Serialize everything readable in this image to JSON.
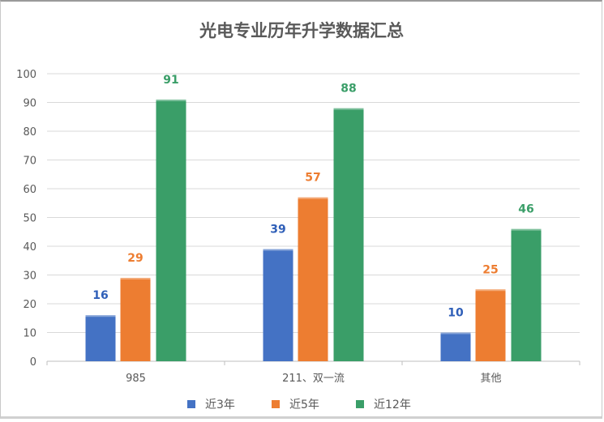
{
  "chart_data": {
    "type": "bar",
    "title": "光电专业历年升学数据汇总",
    "categories": [
      "985",
      "211、双一流",
      "其他"
    ],
    "series": [
      {
        "name": "近3年",
        "values": [
          16,
          39,
          10
        ],
        "color": "#4472c4"
      },
      {
        "name": "近5年",
        "values": [
          29,
          57,
          25
        ],
        "color": "#ed7d31"
      },
      {
        "name": "近12年",
        "values": [
          91,
          88,
          46
        ],
        "color": "#3a9e68"
      }
    ],
    "xlabel": "",
    "ylabel": "",
    "ylim": [
      0,
      100
    ],
    "yticks": [
      0,
      10,
      20,
      30,
      40,
      50,
      60,
      70,
      80,
      90,
      100
    ],
    "grid": true,
    "legend": "bottom",
    "data_labels": true
  }
}
